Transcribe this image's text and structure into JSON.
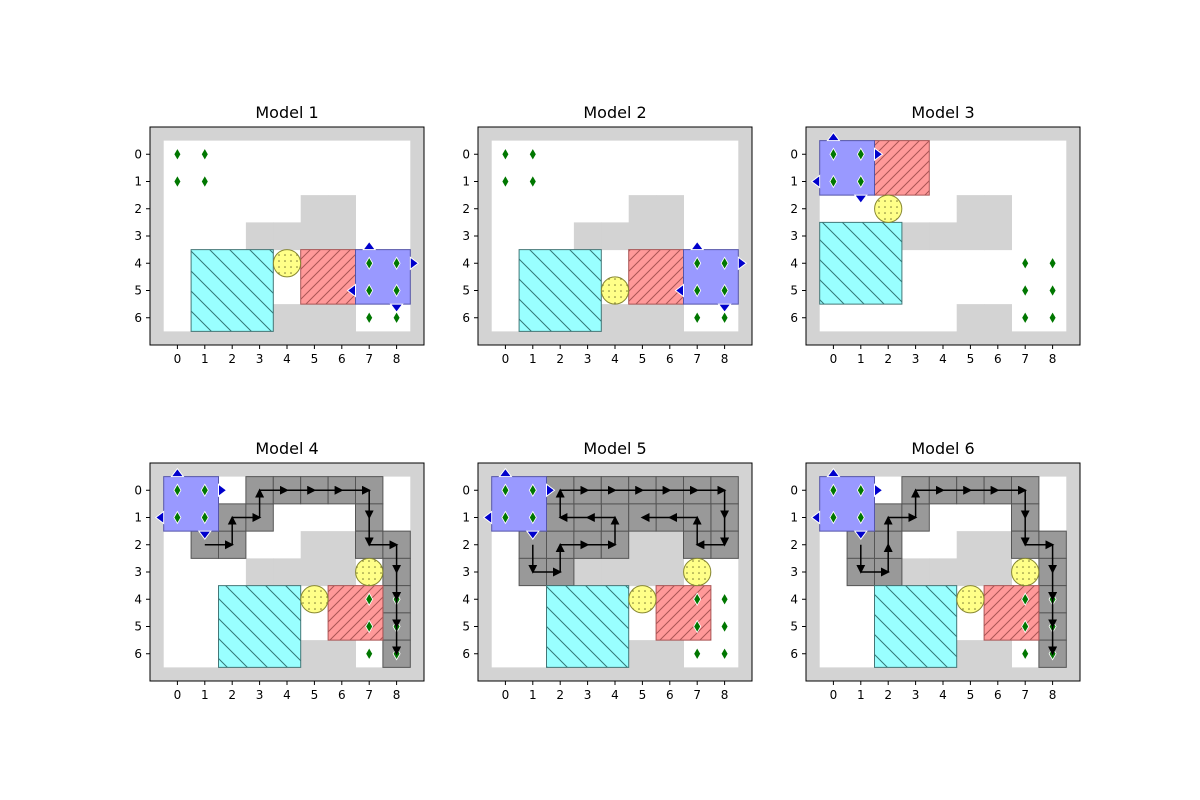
{
  "figure": {
    "colors": {
      "border": "#d3d3d3",
      "floor": "#ffffff",
      "wall": "#d3d3d3",
      "robot": "#9999ff",
      "robot_arrow": "#0000cc",
      "red_box": "#ff9999",
      "cyan_box": "#99ffff",
      "yellow_ball": "#ffff88",
      "gem": "#007700",
      "path_cell": "#999999",
      "path_line": "#000000"
    },
    "x_ticks": [
      "0",
      "1",
      "2",
      "3",
      "4",
      "5",
      "6",
      "7",
      "8"
    ],
    "y_ticks": [
      "0",
      "1",
      "2",
      "3",
      "4",
      "5",
      "6"
    ],
    "panels": [
      {
        "title": "Model 1",
        "walls": [
          [
            5,
            2
          ],
          [
            6,
            2
          ],
          [
            3,
            3
          ],
          [
            4,
            3
          ],
          [
            5,
            3
          ],
          [
            6,
            3
          ],
          [
            4,
            6
          ],
          [
            5,
            6
          ],
          [
            6,
            6
          ]
        ],
        "robot": [
          7,
          4,
          8,
          5
        ],
        "red": [
          5,
          4,
          6,
          5
        ],
        "cyan": [
          1,
          4,
          3,
          6
        ],
        "ball": [
          4,
          4
        ],
        "gems": [
          [
            0,
            0
          ],
          [
            1,
            0
          ],
          [
            0,
            1
          ],
          [
            1,
            1
          ],
          [
            7,
            4
          ],
          [
            8,
            4
          ],
          [
            7,
            5
          ],
          [
            8,
            5
          ],
          [
            7,
            6
          ],
          [
            8,
            6
          ]
        ],
        "path_cells": [],
        "path": []
      },
      {
        "title": "Model 2",
        "walls": [
          [
            5,
            2
          ],
          [
            6,
            2
          ],
          [
            3,
            3
          ],
          [
            4,
            3
          ],
          [
            5,
            3
          ],
          [
            6,
            3
          ],
          [
            4,
            6
          ],
          [
            5,
            6
          ],
          [
            6,
            6
          ]
        ],
        "robot": [
          7,
          4,
          8,
          5
        ],
        "red": [
          5,
          4,
          6,
          5
        ],
        "cyan": [
          1,
          4,
          3,
          6
        ],
        "ball": [
          4,
          5
        ],
        "gems": [
          [
            0,
            0
          ],
          [
            1,
            0
          ],
          [
            0,
            1
          ],
          [
            1,
            1
          ],
          [
            7,
            4
          ],
          [
            8,
            4
          ],
          [
            7,
            5
          ],
          [
            8,
            5
          ],
          [
            7,
            6
          ],
          [
            8,
            6
          ]
        ],
        "path_cells": [],
        "path": []
      },
      {
        "title": "Model 3",
        "walls": [
          [
            5,
            2
          ],
          [
            6,
            2
          ],
          [
            3,
            3
          ],
          [
            4,
            3
          ],
          [
            5,
            3
          ],
          [
            6,
            3
          ],
          [
            5,
            6
          ],
          [
            6,
            6
          ]
        ],
        "robot": [
          0,
          0,
          1,
          1
        ],
        "red": [
          2,
          0,
          3,
          1
        ],
        "cyan": [
          0,
          3,
          2,
          5
        ],
        "ball": [
          2,
          2
        ],
        "gems": [
          [
            0,
            0
          ],
          [
            1,
            0
          ],
          [
            0,
            1
          ],
          [
            1,
            1
          ],
          [
            7,
            4
          ],
          [
            8,
            4
          ],
          [
            7,
            5
          ],
          [
            8,
            5
          ],
          [
            7,
            6
          ],
          [
            8,
            6
          ]
        ],
        "path_cells": [],
        "path": []
      },
      {
        "title": "Model 4",
        "walls": [
          [
            5,
            2
          ],
          [
            6,
            2
          ],
          [
            3,
            3
          ],
          [
            4,
            3
          ],
          [
            5,
            3
          ],
          [
            6,
            3
          ],
          [
            5,
            6
          ],
          [
            6,
            6
          ]
        ],
        "robot": [
          0,
          0,
          1,
          1
        ],
        "red": [
          6,
          4,
          7,
          5
        ],
        "cyan": [
          2,
          4,
          4,
          6
        ],
        "ball": [
          5,
          4
        ],
        "ball2": [
          7,
          3
        ],
        "gems": [
          [
            0,
            0
          ],
          [
            1,
            0
          ],
          [
            0,
            1
          ],
          [
            1,
            1
          ],
          [
            7,
            4
          ],
          [
            8,
            4
          ],
          [
            7,
            5
          ],
          [
            8,
            5
          ],
          [
            7,
            6
          ],
          [
            8,
            6
          ]
        ],
        "path_cells": [
          [
            1,
            2
          ],
          [
            2,
            2
          ],
          [
            2,
            1
          ],
          [
            3,
            1
          ],
          [
            3,
            0
          ],
          [
            4,
            0
          ],
          [
            5,
            0
          ],
          [
            6,
            0
          ],
          [
            7,
            0
          ],
          [
            7,
            1
          ],
          [
            7,
            2
          ],
          [
            8,
            2
          ],
          [
            8,
            3
          ],
          [
            8,
            4
          ],
          [
            8,
            5
          ],
          [
            8,
            6
          ]
        ],
        "path": [
          [
            1,
            2
          ],
          [
            2,
            2
          ],
          [
            2,
            1
          ],
          [
            3,
            1
          ],
          [
            3,
            0
          ],
          [
            4,
            0
          ],
          [
            5,
            0
          ],
          [
            6,
            0
          ],
          [
            7,
            0
          ],
          [
            7,
            1
          ],
          [
            7,
            2
          ],
          [
            8,
            2
          ],
          [
            8,
            3
          ],
          [
            8,
            4
          ],
          [
            8,
            5
          ],
          [
            8,
            6
          ]
        ]
      },
      {
        "title": "Model 5",
        "walls": [
          [
            5,
            2
          ],
          [
            6,
            2
          ],
          [
            3,
            3
          ],
          [
            4,
            3
          ],
          [
            5,
            3
          ],
          [
            6,
            3
          ],
          [
            5,
            6
          ],
          [
            6,
            6
          ]
        ],
        "robot": [
          0,
          0,
          1,
          1
        ],
        "red": [
          6,
          4,
          7,
          5
        ],
        "cyan": [
          2,
          4,
          4,
          6
        ],
        "ball": [
          5,
          4
        ],
        "ball2": [
          7,
          3
        ],
        "gems": [
          [
            0,
            0
          ],
          [
            1,
            0
          ],
          [
            0,
            1
          ],
          [
            1,
            1
          ],
          [
            7,
            4
          ],
          [
            8,
            4
          ],
          [
            7,
            5
          ],
          [
            8,
            5
          ],
          [
            7,
            6
          ],
          [
            8,
            6
          ]
        ],
        "path_cells": [
          [
            1,
            2
          ],
          [
            1,
            3
          ],
          [
            2,
            3
          ],
          [
            2,
            2
          ],
          [
            3,
            2
          ],
          [
            4,
            2
          ],
          [
            4,
            1
          ],
          [
            3,
            1
          ],
          [
            2,
            1
          ],
          [
            2,
            0
          ],
          [
            3,
            0
          ],
          [
            4,
            0
          ],
          [
            5,
            0
          ],
          [
            6,
            0
          ],
          [
            7,
            0
          ],
          [
            8,
            0
          ],
          [
            8,
            1
          ],
          [
            8,
            2
          ],
          [
            7,
            2
          ],
          [
            7,
            1
          ],
          [
            6,
            1
          ],
          [
            5,
            1
          ]
        ],
        "path": [
          [
            1,
            2
          ],
          [
            1,
            3
          ],
          [
            2,
            3
          ],
          [
            2,
            2
          ],
          [
            3,
            2
          ],
          [
            4,
            2
          ],
          [
            4,
            1
          ],
          [
            3,
            1
          ],
          [
            2,
            1
          ],
          [
            2,
            0
          ],
          [
            3,
            0
          ],
          [
            4,
            0
          ],
          [
            5,
            0
          ],
          [
            6,
            0
          ],
          [
            7,
            0
          ],
          [
            8,
            0
          ],
          [
            8,
            1
          ],
          [
            8,
            2
          ],
          [
            7,
            2
          ],
          [
            7,
            1
          ],
          [
            6,
            1
          ],
          [
            5,
            1
          ]
        ]
      },
      {
        "title": "Model 6",
        "walls": [
          [
            5,
            2
          ],
          [
            6,
            2
          ],
          [
            3,
            3
          ],
          [
            4,
            3
          ],
          [
            5,
            3
          ],
          [
            6,
            3
          ],
          [
            5,
            6
          ],
          [
            6,
            6
          ]
        ],
        "robot": [
          0,
          0,
          1,
          1
        ],
        "red": [
          6,
          4,
          7,
          5
        ],
        "cyan": [
          2,
          4,
          4,
          6
        ],
        "ball": [
          5,
          4
        ],
        "ball2": [
          7,
          3
        ],
        "gems": [
          [
            0,
            0
          ],
          [
            1,
            0
          ],
          [
            0,
            1
          ],
          [
            1,
            1
          ],
          [
            7,
            4
          ],
          [
            8,
            4
          ],
          [
            7,
            5
          ],
          [
            8,
            5
          ],
          [
            7,
            6
          ],
          [
            8,
            6
          ]
        ],
        "path_cells": [
          [
            1,
            2
          ],
          [
            1,
            3
          ],
          [
            2,
            3
          ],
          [
            2,
            2
          ],
          [
            2,
            1
          ],
          [
            3,
            1
          ],
          [
            3,
            0
          ],
          [
            4,
            0
          ],
          [
            5,
            0
          ],
          [
            6,
            0
          ],
          [
            7,
            0
          ],
          [
            7,
            1
          ],
          [
            7,
            2
          ],
          [
            8,
            2
          ],
          [
            8,
            3
          ],
          [
            8,
            4
          ],
          [
            8,
            5
          ],
          [
            8,
            6
          ]
        ],
        "path": [
          [
            1,
            2
          ],
          [
            1,
            3
          ],
          [
            2,
            3
          ],
          [
            2,
            2
          ],
          [
            2,
            1
          ],
          [
            3,
            1
          ],
          [
            3,
            0
          ],
          [
            4,
            0
          ],
          [
            5,
            0
          ],
          [
            6,
            0
          ],
          [
            7,
            0
          ],
          [
            7,
            1
          ],
          [
            7,
            2
          ],
          [
            8,
            2
          ],
          [
            8,
            3
          ],
          [
            8,
            4
          ],
          [
            8,
            5
          ],
          [
            8,
            6
          ]
        ]
      }
    ]
  }
}
